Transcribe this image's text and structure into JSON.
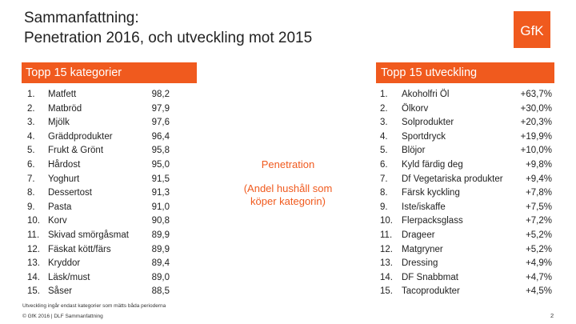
{
  "slide": {
    "title_line1": "Sammanfattning:",
    "title_line2": "Penetration 2016, och utveckling mot 2015",
    "left_header": "Topp 15 kategorier",
    "right_header": "Topp 15 utveckling",
    "center_label": "Penetration",
    "center_sub": "(Andel hushåll som köper kategorin)",
    "footnote": "Utveckling ingår endast kategorier som mätts båda perioderna",
    "footer": "© GfK 2016 | DLF Sammanfattning",
    "page_number": "2",
    "logo_text": "GfK",
    "accent_color": "#f05a1e"
  },
  "left_rows": [
    {
      "num": "1.",
      "name": "Matfett",
      "value": "98,2"
    },
    {
      "num": "2.",
      "name": "Matbröd",
      "value": "97,9"
    },
    {
      "num": "3.",
      "name": "Mjölk",
      "value": "97,6"
    },
    {
      "num": "4.",
      "name": "Gräddprodukter",
      "value": "96,4"
    },
    {
      "num": "5.",
      "name": "Frukt & Grönt",
      "value": "95,8"
    },
    {
      "num": "6.",
      "name": "Hårdost",
      "value": "95,0"
    },
    {
      "num": "7.",
      "name": "Yoghurt",
      "value": "91,5"
    },
    {
      "num": "8.",
      "name": "Dessertost",
      "value": "91,3"
    },
    {
      "num": "9.",
      "name": "Pasta",
      "value": "91,0"
    },
    {
      "num": "10.",
      "name": "Korv",
      "value": "90,8"
    },
    {
      "num": "11.",
      "name": "Skivad smörgåsmat",
      "value": "89,9"
    },
    {
      "num": "12.",
      "name": "Fäskat kött/färs",
      "value": "89,9"
    },
    {
      "num": "13.",
      "name": "Kryddor",
      "value": "89,4"
    },
    {
      "num": "14.",
      "name": "Läsk/must",
      "value": "89,0"
    },
    {
      "num": "15.",
      "name": "Såser",
      "value": "88,5"
    }
  ],
  "right_rows": [
    {
      "num": "1.",
      "name": "Akoholfri Öl",
      "value": "+63,7%"
    },
    {
      "num": "2.",
      "name": "Ölkorv",
      "value": "+30,0%"
    },
    {
      "num": "3.",
      "name": "Solprodukter",
      "value": "+20,3%"
    },
    {
      "num": "4.",
      "name": "Sportdryck",
      "value": "+19,9%"
    },
    {
      "num": "5.",
      "name": "Blöjor",
      "value": "+10,0%"
    },
    {
      "num": "6.",
      "name": "Kyld färdig deg",
      "value": "+9,8%"
    },
    {
      "num": "7.",
      "name": "Df Vegetariska produkter",
      "value": "+9,4%"
    },
    {
      "num": "8.",
      "name": "Färsk kyckling",
      "value": "+7,8%"
    },
    {
      "num": "9.",
      "name": "Iste/iskaffe",
      "value": "+7,5%"
    },
    {
      "num": "10.",
      "name": "Flerpacksglass",
      "value": "+7,2%"
    },
    {
      "num": "11.",
      "name": "Drageer",
      "value": "+5,2%"
    },
    {
      "num": "12.",
      "name": "Matgryner",
      "value": "+5,2%"
    },
    {
      "num": "13.",
      "name": "Dressing",
      "value": "+4,9%"
    },
    {
      "num": "14.",
      "name": "DF Snabbmat",
      "value": "+4,7%"
    },
    {
      "num": "15.",
      "name": "Tacoprodukter",
      "value": "+4,5%"
    }
  ]
}
